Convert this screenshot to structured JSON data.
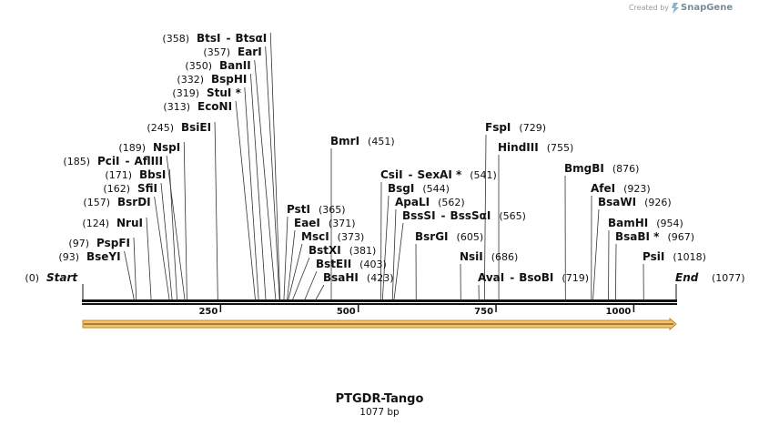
{
  "sequence": {
    "name": "PTGDR-Tango",
    "length_label": "1077 bp",
    "length": 1077,
    "start_label": "Start",
    "end_label": "End",
    "start_pos_label": "(0)",
    "end_pos_label": "(1077)"
  },
  "watermark": {
    "created_by": "Created by",
    "brand": "SnapGene"
  },
  "ruler": {
    "ticks": [
      250,
      500,
      750,
      1000
    ]
  },
  "sites": [
    {
      "name": "BtsI",
      "pair": "BtsαI",
      "pos": 358,
      "pos_label": "(358)"
    },
    {
      "name": "EarI",
      "pos": 357,
      "pos_label": "(357)"
    },
    {
      "name": "BanII",
      "pos": 350,
      "pos_label": "(350)"
    },
    {
      "name": "BspHI",
      "pos": 332,
      "pos_label": "(332)"
    },
    {
      "name": "StuI *",
      "pos": 319,
      "pos_label": "(319)"
    },
    {
      "name": "EcoNI",
      "pos": 313,
      "pos_label": "(313)"
    },
    {
      "name": "BsiEI",
      "pos": 245,
      "pos_label": "(245)"
    },
    {
      "name": "NspI",
      "pos": 189,
      "pos_label": "(189)"
    },
    {
      "name": "PciI",
      "pair": "AflIII",
      "pos": 185,
      "pos_label": "(185)"
    },
    {
      "name": "BbsI",
      "pos": 171,
      "pos_label": "(171)"
    },
    {
      "name": "SfiI",
      "pos": 162,
      "pos_label": "(162)"
    },
    {
      "name": "BsrDI",
      "pos": 157,
      "pos_label": "(157)"
    },
    {
      "name": "NruI",
      "pos": 124,
      "pos_label": "(124)"
    },
    {
      "name": "PspFI",
      "pos": 97,
      "pos_label": "(97)"
    },
    {
      "name": "BseYI",
      "pos": 93,
      "pos_label": "(93)"
    },
    {
      "name": "BmrI",
      "pos": 451,
      "pos_label": "(451)"
    },
    {
      "name": "PstI",
      "pos": 365,
      "pos_label": "(365)"
    },
    {
      "name": "EaeI",
      "pos": 371,
      "pos_label": "(371)"
    },
    {
      "name": "MscI",
      "pos": 373,
      "pos_label": "(373)"
    },
    {
      "name": "BstXI",
      "pos": 381,
      "pos_label": "(381)"
    },
    {
      "name": "BstEII",
      "pos": 403,
      "pos_label": "(403)"
    },
    {
      "name": "BsaHI",
      "pos": 423,
      "pos_label": "(423)"
    },
    {
      "name": "CsiI",
      "pair": "SexAI *",
      "pos": 541,
      "pos_label": "(541)"
    },
    {
      "name": "BsgI",
      "pos": 544,
      "pos_label": "(544)"
    },
    {
      "name": "ApaLI",
      "pos": 562,
      "pos_label": "(562)"
    },
    {
      "name": "BssSI",
      "pair": "BssSαI",
      "pos": 565,
      "pos_label": "(565)"
    },
    {
      "name": "BsrGI",
      "pos": 605,
      "pos_label": "(605)"
    },
    {
      "name": "NsiI",
      "pos": 686,
      "pos_label": "(686)"
    },
    {
      "name": "FspI",
      "pos": 729,
      "pos_label": "(729)"
    },
    {
      "name": "HindIII",
      "pos": 755,
      "pos_label": "(755)"
    },
    {
      "name": "AvaI",
      "pair": "BsoBI",
      "pos": 719,
      "pos_label": "(719)"
    },
    {
      "name": "BmgBI",
      "pos": 876,
      "pos_label": "(876)"
    },
    {
      "name": "AfeI",
      "pos": 923,
      "pos_label": "(923)"
    },
    {
      "name": "BsaWI",
      "pos": 926,
      "pos_label": "(926)"
    },
    {
      "name": "BamHI",
      "pos": 954,
      "pos_label": "(954)"
    },
    {
      "name": "BsaBI *",
      "pos": 967,
      "pos_label": "(967)"
    },
    {
      "name": "PsiI",
      "pos": 1018,
      "pos_label": "(1018)"
    }
  ],
  "colors": {
    "line": "#111111",
    "leader": "#333333",
    "feature_fill": "#f2c272",
    "feature_stroke": "#c7891f",
    "feature_arrow": "#7a5a10"
  }
}
